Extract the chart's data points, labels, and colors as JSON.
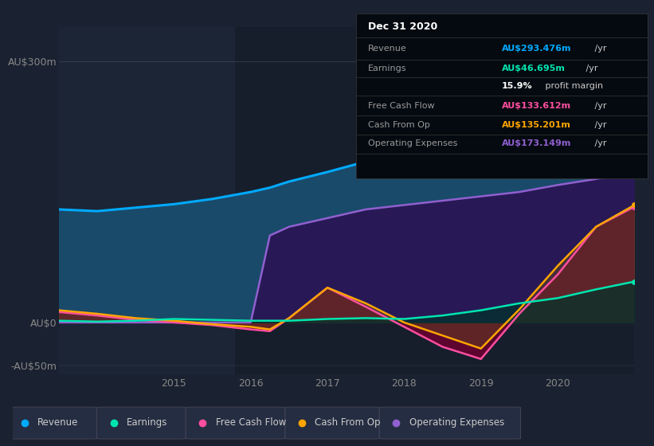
{
  "bg_color": "#1a2130",
  "plot_bg_color": "#1c2535",
  "title_box": {
    "title": "Dec 31 2020",
    "rows": [
      {
        "label": "Revenue",
        "value": "AU$293.476m",
        "unit": " /yr",
        "color": "#00aaff"
      },
      {
        "label": "Earnings",
        "value": "AU$46.695m",
        "unit": " /yr",
        "color": "#00e5b0"
      },
      {
        "label": "",
        "value": "15.9%",
        "unit": " profit margin",
        "color": "#ffffff"
      },
      {
        "label": "Free Cash Flow",
        "value": "AU$133.612m",
        "unit": " /yr",
        "color": "#ff4fa0"
      },
      {
        "label": "Cash From Op",
        "value": "AU$135.201m",
        "unit": " /yr",
        "color": "#ffa500"
      },
      {
        "label": "Operating Expenses",
        "value": "AU$173.149m",
        "unit": " /yr",
        "color": "#9060d0"
      }
    ]
  },
  "years": [
    2013.5,
    2014.0,
    2014.5,
    2015.0,
    2015.5,
    2016.0,
    2016.25,
    2016.5,
    2017.0,
    2017.5,
    2018.0,
    2018.5,
    2019.0,
    2019.5,
    2020.0,
    2020.5,
    2021.0
  ],
  "revenue": [
    130,
    128,
    132,
    136,
    142,
    150,
    155,
    162,
    173,
    185,
    200,
    213,
    228,
    243,
    258,
    278,
    295
  ],
  "earnings": [
    2,
    1,
    2,
    4,
    3,
    2,
    2,
    2,
    4,
    5,
    4,
    8,
    14,
    22,
    28,
    38,
    47
  ],
  "fcf": [
    12,
    8,
    3,
    0,
    -3,
    -8,
    -10,
    5,
    40,
    18,
    -5,
    -28,
    -42,
    10,
    55,
    110,
    133
  ],
  "cfo": [
    14,
    10,
    5,
    2,
    -2,
    -5,
    -8,
    5,
    40,
    22,
    0,
    -15,
    -30,
    15,
    65,
    110,
    135
  ],
  "opex": [
    0,
    0,
    0,
    0,
    0,
    0,
    100,
    110,
    120,
    130,
    135,
    140,
    145,
    150,
    158,
    165,
    173
  ],
  "revenue_color": "#00aaff",
  "revenue_fill": "#1a4a6a",
  "earnings_color": "#00e5b0",
  "earnings_fill": "#00332a",
  "fcf_color": "#ff4fa0",
  "fcf_fill": "#6a0030",
  "cfo_color": "#ffa500",
  "cfo_fill": "#604020",
  "opex_color": "#9060d0",
  "opex_fill": "#2a1555",
  "ylim_min": -60,
  "ylim_max": 340,
  "ytick_vals": [
    -50,
    0,
    300
  ],
  "ytick_labels": [
    "-AU$50m",
    "AU$0",
    "AU$300m"
  ],
  "xtick_vals": [
    2015,
    2016,
    2017,
    2018,
    2019,
    2020
  ],
  "xtick_labels": [
    "2015",
    "2016",
    "2017",
    "2018",
    "2019",
    "2020"
  ],
  "legend_items": [
    {
      "label": "Revenue",
      "color": "#00aaff"
    },
    {
      "label": "Earnings",
      "color": "#00e5b0"
    },
    {
      "label": "Free Cash Flow",
      "color": "#ff4fa0"
    },
    {
      "label": "Cash From Op",
      "color": "#ffa500"
    },
    {
      "label": "Operating Expenses",
      "color": "#9060d0"
    }
  ]
}
